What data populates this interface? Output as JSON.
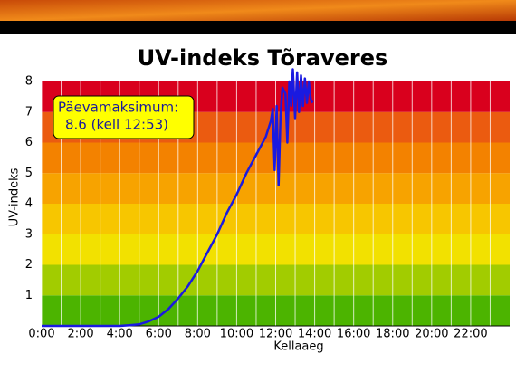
{
  "chart_data": {
    "type": "line",
    "title": "UV-indeks Tõraveres",
    "x_label": "Kellaaeg",
    "y_label": "UV-indeks",
    "annotation": [
      "Päevamaksimum:",
      "8.6 (kell 12:53)"
    ],
    "x": [
      0,
      4.0,
      4.5,
      5.0,
      5.5,
      6.0,
      6.5,
      7.0,
      7.5,
      8.0,
      8.5,
      9.0,
      9.5,
      10.0,
      10.5,
      11.0,
      11.5,
      11.75,
      11.85,
      11.95,
      12.05,
      12.15,
      12.25,
      12.35,
      12.5,
      12.6,
      12.7,
      12.8,
      12.88,
      13.0,
      13.1,
      13.2,
      13.3,
      13.4,
      13.5,
      13.6,
      13.7,
      13.8,
      13.9
    ],
    "values": [
      0,
      0,
      0.02,
      0.05,
      0.15,
      0.3,
      0.55,
      0.9,
      1.3,
      1.8,
      2.4,
      3.0,
      3.7,
      4.3,
      5.0,
      5.6,
      6.2,
      6.7,
      7.1,
      5.1,
      7.2,
      4.6,
      6.9,
      7.8,
      7.6,
      6.0,
      8.0,
      7.2,
      8.4,
      6.8,
      8.3,
      7.0,
      8.2,
      7.2,
      8.1,
      7.3,
      8.0,
      7.4,
      7.3
    ],
    "color": "#1a1ae0",
    "xlim": [
      0,
      24
    ],
    "ylim": [
      0,
      8
    ],
    "xticks": [
      {
        "value": 0,
        "label": "0:00"
      },
      {
        "value": 2,
        "label": "2:00"
      },
      {
        "value": 4,
        "label": "4:00"
      },
      {
        "value": 6,
        "label": "6:00"
      },
      {
        "value": 8,
        "label": "8:00"
      },
      {
        "value": 10,
        "label": "10:00"
      },
      {
        "value": 12,
        "label": "12:00"
      },
      {
        "value": 14,
        "label": "14:00"
      },
      {
        "value": 16,
        "label": "16:00"
      },
      {
        "value": 18,
        "label": "18:00"
      },
      {
        "value": 20,
        "label": "20:00"
      },
      {
        "value": 22,
        "label": "22:00"
      }
    ],
    "xminor": [
      1,
      3,
      5,
      7,
      9,
      11,
      13,
      15,
      17,
      19,
      21,
      23
    ],
    "yticks": [
      1,
      2,
      3,
      4,
      5,
      6,
      7,
      8
    ],
    "band_colors": [
      "#4cb400",
      "#a2cc00",
      "#f2e100",
      "#f7c600",
      "#f7a300",
      "#f38200",
      "#eb5b10",
      "#d9001d"
    ],
    "grid": true
  }
}
